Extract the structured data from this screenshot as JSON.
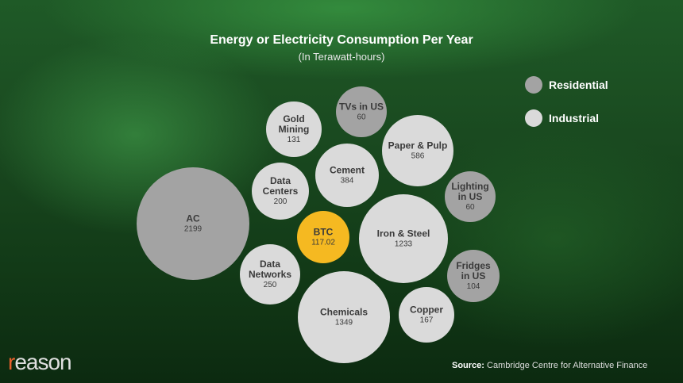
{
  "chart_data": {
    "type": "bubble",
    "title": "Energy or Electricity Consumption Per Year",
    "subtitle": "(In Terawatt-hours)",
    "legend": [
      {
        "name": "Residential",
        "color": "#a3a3a3"
      },
      {
        "name": "Industrial",
        "color": "#dadada"
      }
    ],
    "legend_position": "right",
    "highlight_color": "#f5b921",
    "bubbles": [
      {
        "label": "AC",
        "value": "2199",
        "category": "Residential"
      },
      {
        "label": "Gold Mining",
        "value": "131",
        "category": "Industrial"
      },
      {
        "label": "TVs in US",
        "value": "60",
        "category": "Residential"
      },
      {
        "label": "Paper & Pulp",
        "value": "586",
        "category": "Industrial"
      },
      {
        "label": "Data Centers",
        "value": "200",
        "category": "Industrial"
      },
      {
        "label": "Cement",
        "value": "384",
        "category": "Industrial"
      },
      {
        "label": "Lighting in US",
        "value": "60",
        "category": "Residential"
      },
      {
        "label": "BTC",
        "value": "117.02",
        "category": "Highlight"
      },
      {
        "label": "Iron & Steel",
        "value": "1233",
        "category": "Industrial"
      },
      {
        "label": "Data Networks",
        "value": "250",
        "category": "Industrial"
      },
      {
        "label": "Fridges in US",
        "value": "104",
        "category": "Residential"
      },
      {
        "label": "Chemicals",
        "value": "1349",
        "category": "Industrial"
      },
      {
        "label": "Copper",
        "value": "167",
        "category": "Industrial"
      }
    ]
  },
  "footer": {
    "logo_first": "r",
    "logo_rest": "eason",
    "source_label": "Source:",
    "source_text": " Cambridge Centre for Alternative Finance"
  }
}
